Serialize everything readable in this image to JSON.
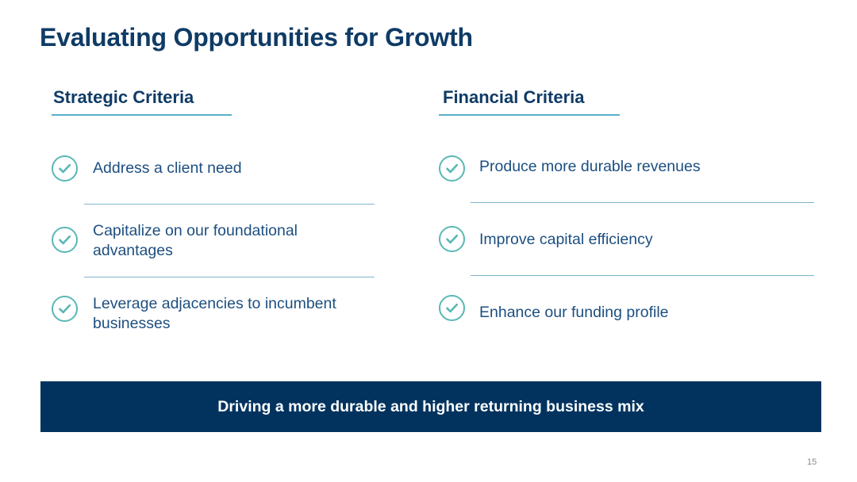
{
  "slide": {
    "title": "Evaluating Opportunities for Growth",
    "page_number": "15"
  },
  "strategic": {
    "heading": "Strategic Criteria",
    "items": [
      {
        "line1": "Address a client need",
        "line2": ""
      },
      {
        "line1": "Capitalize on our foundational",
        "line2": "advantages"
      },
      {
        "line1": "Leverage adjacencies to incumbent",
        "line2": "businesses"
      }
    ]
  },
  "financial": {
    "heading": "Financial Criteria",
    "items": [
      {
        "line1": "Produce more durable revenues"
      },
      {
        "line1": "Improve capital efficiency"
      },
      {
        "line1": "Enhance our funding profile"
      }
    ]
  },
  "banner": {
    "text": "Driving a more durable and higher returning business mix"
  },
  "icons": {
    "check": "checkmark-circle-icon"
  },
  "colors": {
    "title": "#0f3b66",
    "accent_rule": "#5aaec9",
    "check": "#5ab8b5",
    "item_text": "#1d4f80",
    "banner_bg": "#02335f"
  }
}
